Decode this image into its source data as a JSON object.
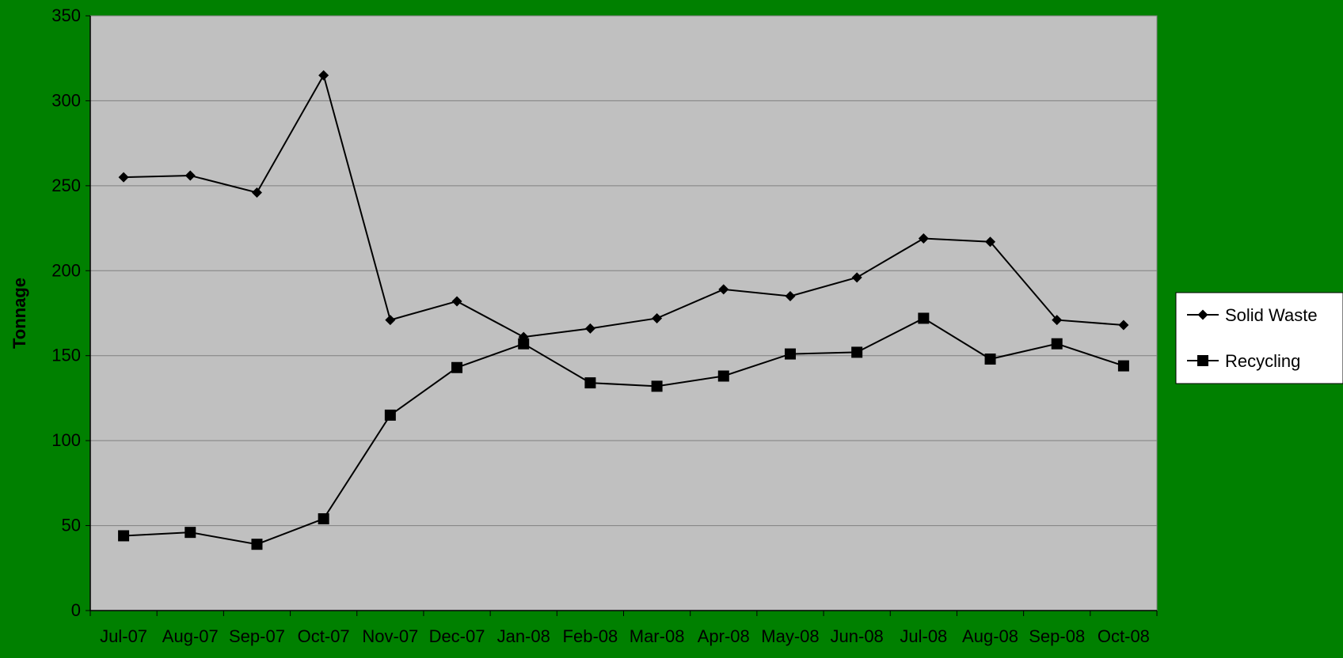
{
  "chart_data": {
    "type": "line",
    "ylabel": "Tonnage",
    "ylim": [
      0,
      350
    ],
    "yticks": [
      0,
      50,
      100,
      150,
      200,
      250,
      300,
      350
    ],
    "grid": true,
    "legend_position": "right",
    "categories": [
      "Jul-07",
      "Aug-07",
      "Sep-07",
      "Oct-07",
      "Nov-07",
      "Dec-07",
      "Jan-08",
      "Feb-08",
      "Mar-08",
      "Apr-08",
      "May-08",
      "Jun-08",
      "Jul-08",
      "Aug-08",
      "Sep-08",
      "Oct-08"
    ],
    "series": [
      {
        "name": "Solid Waste",
        "marker": "diamond",
        "values": [
          255,
          256,
          246,
          315,
          171,
          182,
          161,
          166,
          172,
          189,
          185,
          196,
          219,
          217,
          171,
          168
        ]
      },
      {
        "name": "Recycling",
        "marker": "square",
        "values": [
          44,
          46,
          39,
          54,
          115,
          143,
          157,
          134,
          132,
          138,
          151,
          152,
          172,
          148,
          157,
          144
        ]
      }
    ],
    "colors": {
      "background": "#008000",
      "plot_area": "#C0C0C0",
      "gridline": "#808080",
      "line": "#000000",
      "axis_text": "#000000",
      "legend_bg": "#FFFFFF"
    }
  }
}
